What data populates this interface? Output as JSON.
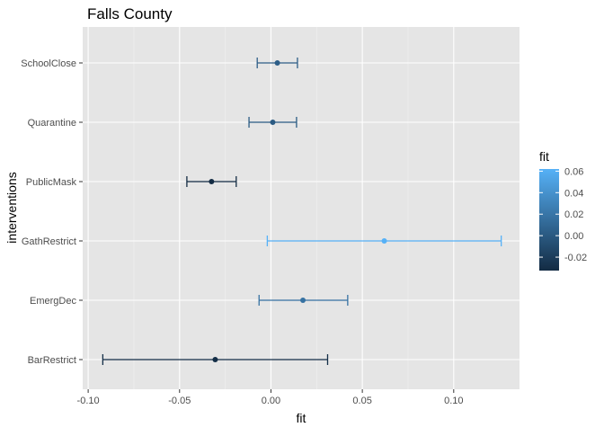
{
  "chart_data": {
    "type": "errorbar",
    "title": "Falls County",
    "xlabel": "fit",
    "ylabel": "interventions",
    "xlim": [
      -0.103,
      0.136
    ],
    "x_ticks": [
      -0.1,
      -0.05,
      0.0,
      0.05,
      0.1
    ],
    "x_tick_labels": [
      "-0.10",
      "-0.05",
      "0.00",
      "0.05",
      "0.10"
    ],
    "grid": true,
    "categories": [
      "SchoolClose",
      "Quarantine",
      "PublicMask",
      "GathRestrict",
      "EmergDec",
      "BarRestrict"
    ],
    "points": [
      {
        "intervention": "SchoolClose",
        "fit": 0.0035,
        "lower": -0.0075,
        "upper": 0.0145
      },
      {
        "intervention": "Quarantine",
        "fit": 0.001,
        "lower": -0.012,
        "upper": 0.014
      },
      {
        "intervention": "PublicMask",
        "fit": -0.0325,
        "lower": -0.046,
        "upper": -0.019
      },
      {
        "intervention": "GathRestrict",
        "fit": 0.062,
        "lower": -0.002,
        "upper": 0.126
      },
      {
        "intervention": "EmergDec",
        "fit": 0.0175,
        "lower": -0.0065,
        "upper": 0.042
      },
      {
        "intervention": "BarRestrict",
        "fit": -0.0305,
        "lower": -0.092,
        "upper": 0.031
      }
    ],
    "legend": {
      "title": "fit",
      "placement": "right",
      "range": [
        -0.0325,
        0.062
      ],
      "ticks": [
        -0.02,
        0.0,
        0.02,
        0.04,
        0.06
      ],
      "tick_labels": [
        "-0.02",
        "0.00",
        "0.02",
        "0.04",
        "0.06"
      ],
      "color_low": "#132b43",
      "color_high": "#56b1f7"
    },
    "colors": {
      "panel_background": "#e5e5e5",
      "grid_major": "#ffffff",
      "grid_minor": "#f0f0f0",
      "axis_text": "#4d4d4d",
      "title_text": "#000000"
    }
  }
}
